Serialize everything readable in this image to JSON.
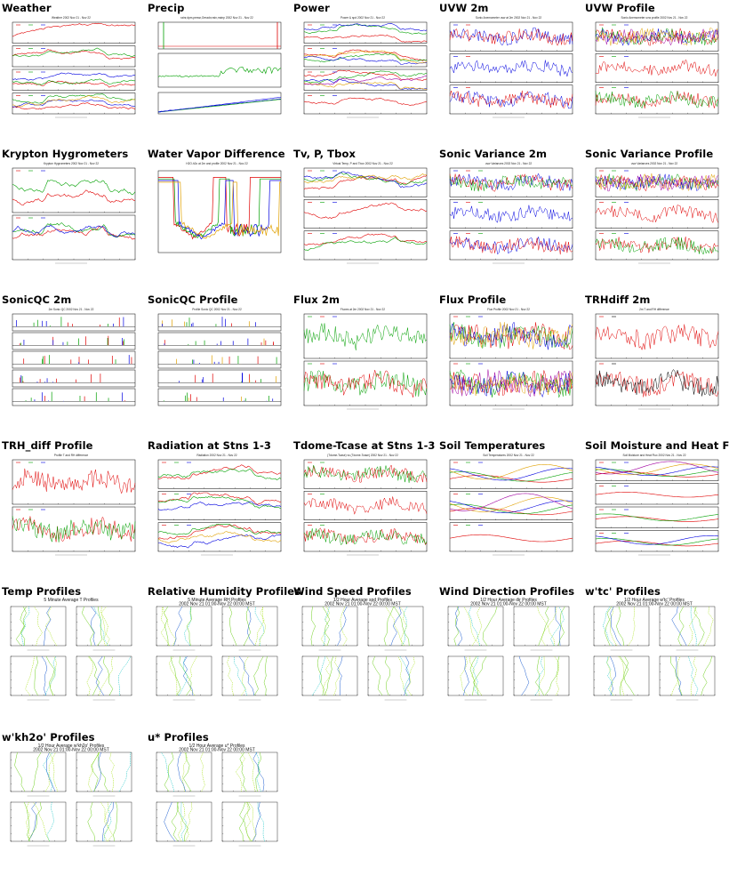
{
  "thumbnails": [
    {
      "label": "Weather",
      "kind": "ts",
      "panels": 4,
      "title": "Weather 2002 Nov 21 - Nov 22",
      "colors": [
        "#e00000",
        "#00a000",
        "#0000e0",
        "#e0a000"
      ]
    },
    {
      "label": "Precip",
      "kind": "precip",
      "panels": 3,
      "title": "rainr,dpm,pressr,Oreadr,rrain,rrainp 2002 Nov 21 - Nov 22",
      "colors": [
        "#e00000",
        "#00a000",
        "#0000e0"
      ]
    },
    {
      "label": "Power",
      "kind": "ts",
      "panels": 4,
      "title": "Power & spd 2002 Nov 21 - Nov 22",
      "colors": [
        "#e00000",
        "#00a000",
        "#0000e0",
        "#e0a000",
        "#a000a0"
      ]
    },
    {
      "label": "UVW 2m",
      "kind": "noisy",
      "panels": 3,
      "title": "Sonic Anemometer uvw at 2m 2002 Nov 21 - Nov 22",
      "colors": [
        "#0000e0",
        "#e00000"
      ]
    },
    {
      "label": "UVW Profile",
      "kind": "noisy",
      "panels": 3,
      "title": "Sonic Anemometer uvw profile 2002 Nov 21 - Nov 22",
      "colors": [
        "#e00000",
        "#00a000",
        "#0000e0",
        "#e0a000",
        "#a000a0"
      ]
    },
    {
      "label": "Krypton Hygrometers",
      "kind": "ts",
      "panels": 2,
      "title": "Krypton Hygrometers 2002 Nov 21 - Nov 22",
      "colors": [
        "#e00000",
        "#00a000",
        "#0000e0",
        "#e0a000"
      ]
    },
    {
      "label": "Water Vapor Difference",
      "kind": "wvd",
      "panels": 1,
      "title": "H2O-h2o at 2m and profile 2002 Nov 21 - Nov 22",
      "colors": [
        "#e00000",
        "#00a000",
        "#0000e0",
        "#e0a000"
      ]
    },
    {
      "label": "Tv, P, Tbox",
      "kind": "ts",
      "panels": 3,
      "title": "Virtual Temp, P and Tbox 2002 Nov 21 - Nov 22",
      "colors": [
        "#e00000",
        "#00a000",
        "#0000e0",
        "#e0a000"
      ]
    },
    {
      "label": "Sonic Variance 2m",
      "kind": "noisy",
      "panels": 3,
      "title": "uvw Variances 2002 Nov 21 - Nov 22",
      "colors": [
        "#0000e0",
        "#e00000",
        "#00a000"
      ]
    },
    {
      "label": "Sonic Variance Profile",
      "kind": "noisy",
      "panels": 3,
      "title": "uvw Variances 2002 Nov 21 - Nov 22",
      "colors": [
        "#e00000",
        "#00a000",
        "#0000e0",
        "#e0a000",
        "#a000a0"
      ]
    },
    {
      "label": "SonicQC 2m",
      "kind": "spikes",
      "panels": 5,
      "title": "2m Sonic QC 2002 Nov 21 - Nov 22",
      "colors": [
        "#e00000",
        "#00a000",
        "#0000e0"
      ]
    },
    {
      "label": "SonicQC Profile",
      "kind": "spikes",
      "panels": 5,
      "title": "Profile Sonic QC 2002 Nov 21 - Nov 22",
      "colors": [
        "#e00000",
        "#00a000",
        "#0000e0",
        "#e0a000"
      ]
    },
    {
      "label": "Flux 2m",
      "kind": "noisy",
      "panels": 2,
      "title": "Fluxes at 2m 2002 Nov 21 - Nov 22",
      "colors": [
        "#00a000",
        "#e00000",
        "#0000e0"
      ]
    },
    {
      "label": "Flux Profile",
      "kind": "noisy",
      "panels": 2,
      "title": "Flux Profile 2002 Nov 21 - Nov 22",
      "colors": [
        "#e00000",
        "#00a000",
        "#0000e0",
        "#e0a000",
        "#a000a0"
      ]
    },
    {
      "label": "TRHdiff 2m",
      "kind": "noisy",
      "panels": 2,
      "title": "2m T and RH difference",
      "colors": [
        "#e00000",
        "#000000"
      ]
    },
    {
      "label": "TRH_diff Profile",
      "kind": "noisy",
      "panels": 2,
      "title": "Profile T and RH difference",
      "colors": [
        "#e00000",
        "#00a000",
        "#0000e0",
        "#e0a000",
        "#a000a0"
      ]
    },
    {
      "label": "Radiation at Stns 1-3",
      "kind": "ts",
      "panels": 3,
      "title": "Radiation 2002 Nov 21 - Nov 22",
      "colors": [
        "#e00000",
        "#00a000",
        "#0000e0",
        "#e0a000",
        "#a000a0"
      ]
    },
    {
      "label": "Tdome-Tcase at Stns 1-3",
      "kind": "noisy",
      "panels": 3,
      "title": "(Tdome-Tcase) vs (Tdome-Tcase) 2002 Nov 21 - Nov 22",
      "colors": [
        "#e00000",
        "#00a000"
      ]
    },
    {
      "label": "Soil Temperatures",
      "kind": "smooth",
      "panels": 3,
      "title": "Soil Temperatures 2002 Nov 21 - Nov 22",
      "colors": [
        "#e00000",
        "#00a000",
        "#0000e0",
        "#e0a000",
        "#a000a0"
      ]
    },
    {
      "label": "Soil Moisture and Heat Flux",
      "kind": "smooth",
      "panels": 4,
      "title": "Soil Moisture and Heat Flux 2002 Nov 21 - Nov 22",
      "colors": [
        "#e00000",
        "#00a000",
        "#0000e0",
        "#e0a000",
        "#a000a0"
      ]
    },
    {
      "label": "Temp Profiles",
      "kind": "profile",
      "panels": 4,
      "title": "5 Minute Average T Profiles",
      "title2": "",
      "colors": [
        "#70d020",
        "#a0e000",
        "#2060d0",
        "#00c0c0"
      ]
    },
    {
      "label": "Relative Humidity Profiles",
      "kind": "profile",
      "panels": 4,
      "title": "5 Minute Average RH Profiles",
      "title2": "2002 Nov 21 01:00-Nov 22 00:00 MST",
      "colors": [
        "#70d020",
        "#a0e000",
        "#2060d0",
        "#00c0c0"
      ]
    },
    {
      "label": "Wind Speed Profiles",
      "kind": "profile",
      "panels": 4,
      "title": "1/2 Hour Average spd Profiles",
      "title2": "2002 Nov 21 01:00-Nov 22 00:00 MST",
      "colors": [
        "#70d020",
        "#a0e000",
        "#2060d0",
        "#00c0c0"
      ]
    },
    {
      "label": "Wind Direction Profiles",
      "kind": "profile",
      "panels": 4,
      "title": "1/2 Hour Average dir Profiles",
      "title2": "2002 Nov 21 01:00-Nov 22 00:00 MST",
      "colors": [
        "#70d020",
        "#a0e000",
        "#2060d0",
        "#00c0c0"
      ]
    },
    {
      "label": "w'tc' Profiles",
      "kind": "profile",
      "panels": 4,
      "title": "1/2 Hour Average w'tc' Profiles",
      "title2": "2002 Nov 21 01:00-Nov 22 00:00 MST",
      "colors": [
        "#70d020",
        "#a0e000",
        "#2060d0",
        "#00c0c0"
      ]
    },
    {
      "label": "w'kh2o' Profiles",
      "kind": "profile",
      "panels": 4,
      "title": "1/2 Hour Average w'kh2o' Profiles",
      "title2": "2002 Nov 21 01:00-Nov 22 00:00 MST",
      "colors": [
        "#70d020",
        "#a0e000",
        "#2060d0",
        "#00c0c0"
      ]
    },
    {
      "label": "u* Profiles",
      "kind": "profile",
      "panels": 4,
      "title": "1/2 Hour Average u* Profiles",
      "title2": "2002 Nov 21 01:00-Nov 22 00:00 MST",
      "colors": [
        "#70d020",
        "#a0e000",
        "#2060d0",
        "#00c0c0"
      ]
    }
  ]
}
